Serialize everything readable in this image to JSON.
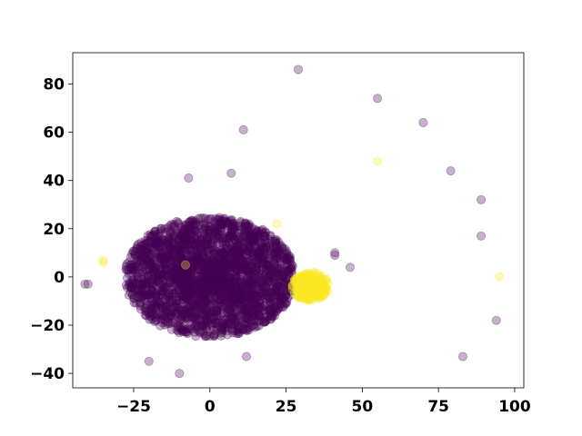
{
  "chart_data": {
    "type": "scatter",
    "title": "",
    "xlabel": "",
    "ylabel": "",
    "xlim": [
      -45,
      103
    ],
    "ylim": [
      -46,
      93
    ],
    "xticks": [
      -25,
      0,
      25,
      50,
      75,
      100
    ],
    "xtick_labels": [
      "−25",
      "0",
      "25",
      "50",
      "75",
      "100"
    ],
    "yticks": [
      -40,
      -20,
      0,
      20,
      40,
      60,
      80
    ],
    "ytick_labels": [
      "−40",
      "−20",
      "0",
      "20",
      "40",
      "60",
      "80"
    ],
    "grid": false,
    "legend": "none",
    "colors": {
      "class_0": "#440154",
      "class_1": "#fde725"
    },
    "point_alpha": 0.3,
    "clusters": [
      {
        "class": 0,
        "center": [
          0,
          0
        ],
        "radius_x": 28,
        "radius_y": 25,
        "count": 2400,
        "seed": 11
      },
      {
        "class": 1,
        "center": [
          33,
          -4
        ],
        "radius_x": 6,
        "radius_y": 6,
        "count": 260,
        "seed": 29
      }
    ],
    "outliers_class_0": [
      [
        29,
        86
      ],
      [
        55,
        74
      ],
      [
        11,
        61
      ],
      [
        70,
        64
      ],
      [
        79,
        44
      ],
      [
        89,
        32
      ],
      [
        89,
        17
      ],
      [
        94,
        -18
      ],
      [
        83,
        -33
      ],
      [
        -41,
        -3
      ],
      [
        -40,
        -3
      ],
      [
        -10,
        -40
      ],
      [
        -7,
        41
      ],
      [
        7,
        43
      ],
      [
        46,
        4
      ],
      [
        41,
        10
      ],
      [
        41,
        9
      ],
      [
        12,
        -33
      ],
      [
        -20,
        -35
      ]
    ],
    "outliers_class_1": [
      [
        55,
        48
      ],
      [
        95,
        0
      ],
      [
        -35,
        6
      ],
      [
        -35,
        7
      ],
      [
        -8,
        5
      ],
      [
        22,
        22
      ]
    ]
  }
}
